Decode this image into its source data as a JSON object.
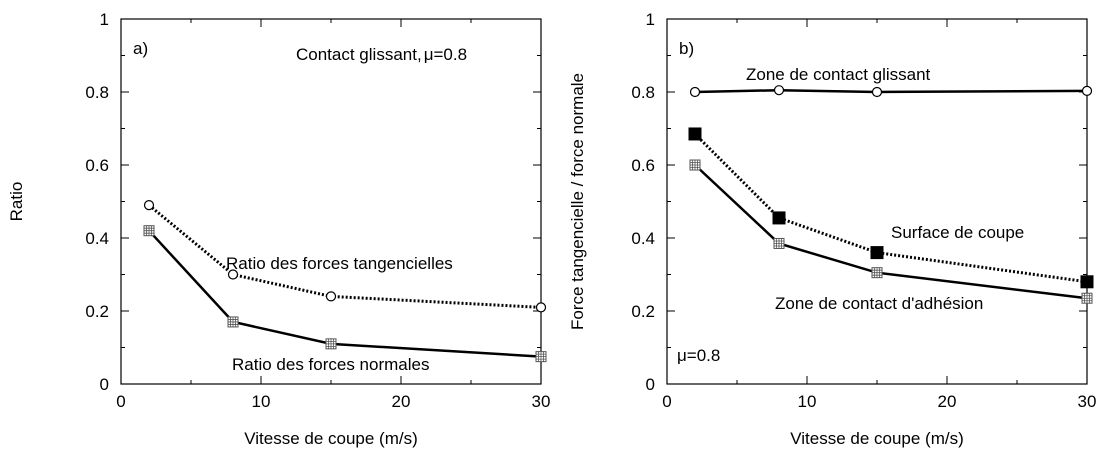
{
  "chart_data": [
    {
      "type": "line",
      "panel_label": "a)",
      "xlabel": "Vitesse de coupe (m/s)",
      "ylabel": "Ratio",
      "xlim": [
        0,
        30
      ],
      "ylim": [
        0,
        1
      ],
      "x_ticks": [
        "0",
        "10",
        "20",
        "30"
      ],
      "y_ticks": [
        "0",
        "0.2",
        "0.4",
        "0.6",
        "0.8",
        "1"
      ],
      "grid": false,
      "annotations": {
        "condition_prefix": "Contact glissant,",
        "condition_mu": "μ=0.8"
      },
      "series": [
        {
          "name": "Ratio des forces tangencielles",
          "line": "dotted",
          "marker": "circle",
          "x": [
            2,
            8,
            15,
            30
          ],
          "y": [
            0.49,
            0.3,
            0.24,
            0.21
          ]
        },
        {
          "name": "Ratio des forces normales",
          "line": "solid",
          "marker": "square-grid",
          "x": [
            2,
            8,
            15,
            30
          ],
          "y": [
            0.42,
            0.17,
            0.11,
            0.075
          ]
        }
      ]
    },
    {
      "type": "line",
      "panel_label": "b)",
      "xlabel": "Vitesse de coupe (m/s)",
      "ylabel": "Force tangencielle / force normale",
      "xlim": [
        0,
        30
      ],
      "ylim": [
        0,
        1
      ],
      "x_ticks": [
        "0",
        "10",
        "20",
        "30"
      ],
      "y_ticks": [
        "0",
        "0.2",
        "0.4",
        "0.6",
        "0.8",
        "1"
      ],
      "grid": false,
      "annotations": {
        "condition_mu": "μ=0.8"
      },
      "series": [
        {
          "name": "Zone de contact glissant",
          "line": "solid",
          "marker": "circle",
          "x": [
            2,
            8,
            15,
            30
          ],
          "y": [
            0.8,
            0.805,
            0.8,
            0.803
          ]
        },
        {
          "name": "Surface de coupe",
          "line": "dotted",
          "marker": "filled-square",
          "x": [
            2,
            8,
            15,
            30
          ],
          "y": [
            0.685,
            0.455,
            0.36,
            0.28
          ]
        },
        {
          "name": "Zone de contact d'adhésion",
          "line": "solid",
          "marker": "square-grid",
          "x": [
            2,
            8,
            15,
            30
          ],
          "y": [
            0.6,
            0.385,
            0.305,
            0.235
          ]
        }
      ]
    }
  ]
}
